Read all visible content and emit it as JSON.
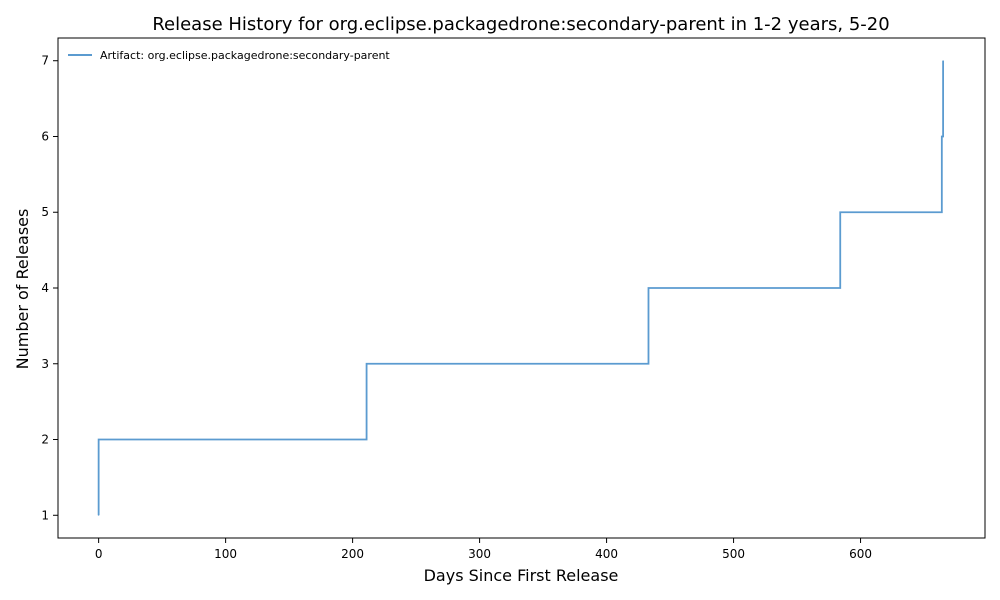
{
  "chart_data": {
    "type": "line",
    "drawstyle": "step-post",
    "title": "Release History for org.eclipse.packagedrone:secondary-parent in 1-2 years, 5-20",
    "xlabel": "Days Since First Release",
    "ylabel": "Number of Releases",
    "xlim": [
      -32,
      698
    ],
    "ylim": [
      0.7,
      7.3
    ],
    "xticks": [
      0,
      100,
      200,
      300,
      400,
      500,
      600
    ],
    "yticks": [
      1,
      2,
      3,
      4,
      5,
      6,
      7
    ],
    "grid": false,
    "legend_position": "top-left",
    "series": [
      {
        "name": "Artifact: org.eclipse.packagedrone:secondary-parent",
        "color": "#5b9bd0",
        "x": [
          0,
          0,
          211,
          433,
          584,
          664,
          665
        ],
        "y": [
          1,
          2,
          3,
          4,
          5,
          6,
          7
        ]
      }
    ]
  }
}
